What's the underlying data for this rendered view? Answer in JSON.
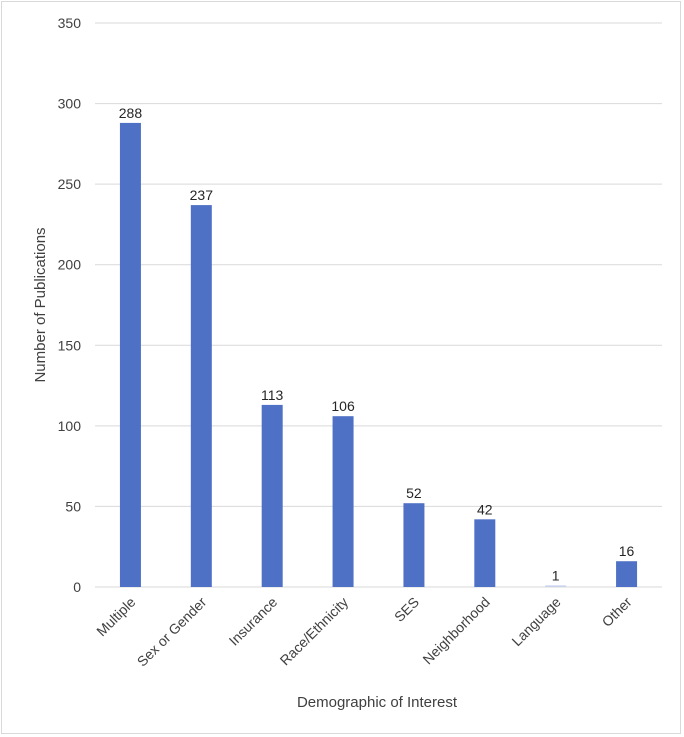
{
  "chart_data": {
    "type": "bar",
    "title": "",
    "xlabel": "Demographic of Interest",
    "ylabel": "Number of Publications",
    "categories": [
      "Multiple",
      "Sex or Gender",
      "Insurance",
      "Race/Ethnicity",
      "SES",
      "Neighborhood",
      "Language",
      "Other"
    ],
    "values": [
      288,
      237,
      113,
      106,
      52,
      42,
      1,
      16
    ],
    "ylim": [
      0,
      350
    ],
    "yticks": [
      0,
      50,
      100,
      150,
      200,
      250,
      300,
      350
    ],
    "grid": true,
    "legend": "none",
    "bar_color": "#4f71c5",
    "grid_color": "#d9d9d9"
  }
}
